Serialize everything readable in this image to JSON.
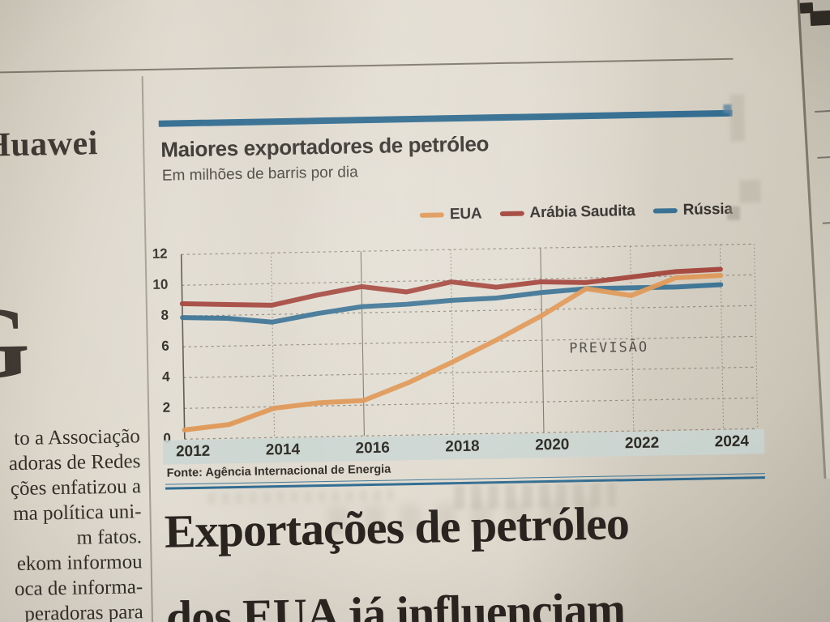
{
  "left_column": {
    "headline_fragment": "Huawei",
    "dropcap_fragment": "G",
    "body_lines": [
      "to a Associação",
      "adoras de Redes",
      "ções enfatizou a",
      "ma política uni-",
      "m fatos.",
      "ekom informou",
      "oca de informa-",
      "peradoras para"
    ]
  },
  "chart_data": {
    "type": "line",
    "title": "Maiores exportadores de petróleo",
    "subtitle": "Em milhões de barris por dia",
    "x": [
      2012,
      2013,
      2014,
      2015,
      2016,
      2017,
      2018,
      2019,
      2020,
      2021,
      2022,
      2023,
      2024
    ],
    "xticks": [
      2012,
      2014,
      2016,
      2018,
      2020,
      2022,
      2024
    ],
    "yticks": [
      0,
      2,
      4,
      6,
      8,
      10,
      12
    ],
    "ylim": [
      0,
      12
    ],
    "grid": true,
    "legend_position": "top-right",
    "annotation": {
      "text": "PREVISÃO",
      "x": 2020.6,
      "y": 5.4
    },
    "series": [
      {
        "name": "EUA",
        "color": "#de9450",
        "values": [
          0.6,
          0.9,
          1.9,
          2.2,
          2.3,
          3.4,
          4.7,
          6.1,
          7.6,
          9.3,
          8.8,
          9.9,
          10.0
        ]
      },
      {
        "name": "Arábia Saudita",
        "color": "#9e3a30",
        "values": [
          8.8,
          8.7,
          8.6,
          9.2,
          9.7,
          9.3,
          9.9,
          9.5,
          9.8,
          9.7,
          10.0,
          10.3,
          10.4
        ]
      },
      {
        "name": "Rússia",
        "color": "#2f6a8e",
        "values": [
          7.9,
          7.8,
          7.5,
          8.0,
          8.4,
          8.5,
          8.7,
          8.8,
          9.1,
          9.3,
          9.3,
          9.3,
          9.4
        ]
      }
    ],
    "source": "Fonte: Agência Internacional de Energia"
  },
  "headline": {
    "line1": "Exportações de petróleo",
    "line2": "dos EUA já influenciam"
  }
}
